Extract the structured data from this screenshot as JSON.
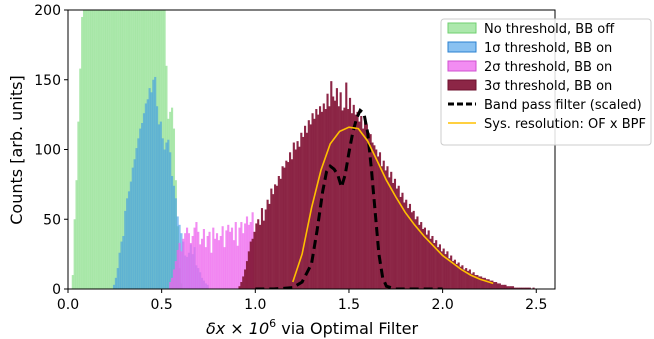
{
  "chart_data": {
    "type": "bar",
    "xlabel_prefix": "δx × 10",
    "xlabel_exponent": "6",
    "xlabel_suffix": " via Optimal Filter",
    "ylabel": "Counts [arb. units]",
    "xlim": [
      0.0,
      2.6
    ],
    "ylim": [
      0,
      200
    ],
    "xticks": [
      0.0,
      0.5,
      1.0,
      1.5,
      2.0,
      2.5
    ],
    "xtick_labels": [
      "0.0",
      "0.5",
      "1.0",
      "1.5",
      "2.0",
      "2.5"
    ],
    "yticks": [
      0,
      50,
      100,
      150,
      200
    ],
    "ytick_labels": [
      "0",
      "50",
      "100",
      "150",
      "200"
    ],
    "grid": false,
    "legend_position": "top-right",
    "series": [
      {
        "name": "No threshold, BB off",
        "kind": "histogram",
        "color": "#90e090",
        "edge": "#6fcf6f",
        "opacity": 0.75,
        "bin_start": 0.02,
        "bin_width": 0.01,
        "values": [
          10,
          50,
          78,
          120,
          158,
          195,
          200,
          200,
          200,
          200,
          200,
          200,
          200,
          200,
          200,
          200,
          200,
          200,
          200,
          200,
          200,
          200,
          200,
          200,
          200,
          200,
          200,
          200,
          200,
          200,
          200,
          200,
          200,
          200,
          200,
          200,
          200,
          200,
          200,
          200,
          200,
          200,
          200,
          200,
          200,
          200,
          200,
          200,
          200,
          200,
          160,
          122,
          127,
          130,
          115,
          78,
          45,
          15,
          4
        ]
      },
      {
        "name": "1σ threshold, BB on",
        "kind": "histogram",
        "color": "#3a97e8",
        "edge": "#2a80d0",
        "opacity": 0.6,
        "bin_start": 0.24,
        "bin_width": 0.01,
        "values": [
          3,
          8,
          15,
          26,
          34,
          38,
          56,
          65,
          70,
          77,
          87,
          93,
          101,
          108,
          115,
          119,
          126,
          133,
          136,
          144,
          141,
          150,
          152,
          131,
          118,
          120,
          108,
          100,
          105,
          107,
          98,
          81,
          74,
          65,
          52,
          46,
          40,
          34,
          24,
          23,
          26,
          32,
          25,
          30,
          17,
          15,
          12,
          8,
          6,
          4,
          3
        ]
      },
      {
        "name": "2σ threshold, BB on",
        "kind": "histogram",
        "color": "#ee66ee",
        "edge": "#d050d0",
        "opacity": 0.75,
        "bin_start": 0.54,
        "bin_width": 0.01,
        "values": [
          5,
          8,
          14,
          20,
          28,
          33,
          27,
          36,
          40,
          44,
          40,
          33,
          38,
          44,
          48,
          41,
          32,
          36,
          43,
          30,
          38,
          41,
          26,
          44,
          36,
          40,
          35,
          38,
          45,
          30,
          42,
          46,
          41,
          44,
          35,
          48,
          31,
          44,
          48,
          40,
          47,
          52,
          46,
          48,
          55
        ]
      },
      {
        "name": "3σ threshold, BB on",
        "kind": "histogram",
        "color": "#861a3c",
        "edge": "#6e102e",
        "opacity": 0.95,
        "bin_start": 0.9,
        "bin_width": 0.01,
        "values": [
          0,
          2,
          5,
          9,
          14,
          20,
          27,
          34,
          36,
          41,
          47,
          50,
          46,
          58,
          49,
          57,
          64,
          61,
          72,
          68,
          75,
          74,
          81,
          79,
          88,
          87,
          92,
          91,
          98,
          93,
          105,
          100,
          106,
          102,
          112,
          109,
          117,
          112,
          121,
          118,
          126,
          122,
          129,
          125,
          131,
          127,
          133,
          129,
          140,
          131,
          149,
          138,
          135,
          144,
          131,
          141,
          128,
          130,
          148,
          129,
          137,
          126,
          132,
          125,
          127,
          120,
          124,
          115,
          121,
          118,
          112,
          111,
          105,
          103,
          100,
          95,
          98,
          88,
          92,
          85,
          88,
          80,
          84,
          76,
          79,
          72,
          74,
          66,
          69,
          62,
          64,
          58,
          61,
          55,
          56,
          50,
          52,
          46,
          48,
          43,
          44,
          39,
          42,
          36,
          38,
          33,
          35,
          30,
          32,
          27,
          29,
          25,
          27,
          22,
          24,
          20,
          21,
          18,
          19,
          16,
          17,
          14,
          15,
          13,
          14,
          11,
          12,
          10,
          10,
          9,
          9,
          8,
          8,
          7,
          7,
          6,
          6,
          5,
          5,
          4,
          4,
          3,
          3,
          3,
          2,
          2,
          2,
          2,
          1,
          1,
          1,
          1,
          1,
          1,
          1,
          1,
          1,
          0,
          1,
          0,
          0,
          0,
          0,
          0
        ]
      },
      {
        "name": "Band pass filter (scaled)",
        "kind": "line",
        "color": "#000000",
        "dashed": true,
        "x": [
          1.0,
          1.1,
          1.2,
          1.25,
          1.3,
          1.33,
          1.36,
          1.38,
          1.4,
          1.42,
          1.44,
          1.46,
          1.48,
          1.5,
          1.52,
          1.54,
          1.56,
          1.58,
          1.6,
          1.62,
          1.64,
          1.66,
          1.68,
          1.7,
          1.75,
          1.8,
          2.0
        ],
        "y": [
          0,
          0,
          1,
          5,
          18,
          42,
          70,
          84,
          88,
          86,
          82,
          73,
          82,
          98,
          112,
          122,
          128,
          126,
          112,
          86,
          55,
          25,
          8,
          2,
          0,
          0,
          0
        ]
      },
      {
        "name": "Sys. resolution: OF x BPF",
        "kind": "line",
        "color": "#ffc000",
        "dashed": false,
        "x": [
          1.2,
          1.25,
          1.3,
          1.35,
          1.4,
          1.45,
          1.5,
          1.55,
          1.6,
          1.65,
          1.7,
          1.75,
          1.8,
          1.85,
          1.9,
          1.95,
          2.0,
          2.05,
          2.1,
          2.15,
          2.2,
          2.27
        ],
        "y": [
          5,
          25,
          58,
          85,
          104,
          113,
          116,
          115,
          106,
          92,
          78,
          66,
          55,
          46,
          38,
          31,
          24,
          19,
          14,
          10,
          7,
          4
        ]
      }
    ]
  }
}
